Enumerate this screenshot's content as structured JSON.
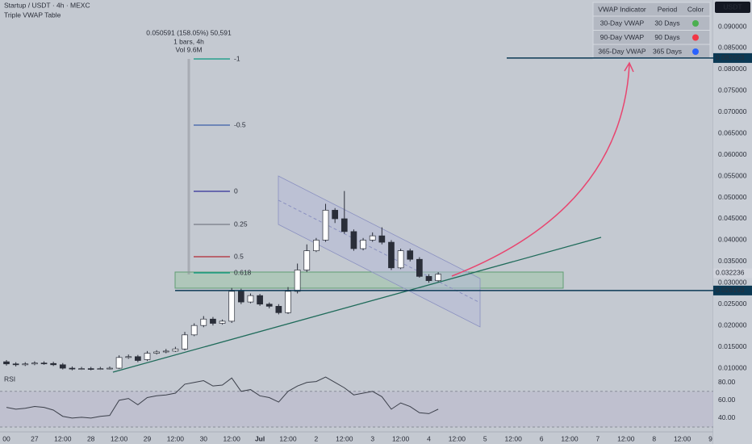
{
  "header": {
    "symbol": "Startup / USDT · 4h · MEXC",
    "indicator": "Triple VWAP Table"
  },
  "vwap_table": {
    "columns": [
      "VWAP Indicator",
      "Period",
      "Color"
    ],
    "rows": [
      {
        "name": "30-Day VWAP",
        "period": "30 Days",
        "color": "#4caf50"
      },
      {
        "name": "90-Day VWAP",
        "period": "90 Days",
        "color": "#f23645"
      },
      {
        "name": "365-Day VWAP",
        "period": "365 Days",
        "color": "#2962ff"
      }
    ]
  },
  "measure": {
    "lines": [
      "0.050591 (158.05%) 50,591",
      "1 bars, 4h",
      "Vol 9.6M"
    ]
  },
  "fib_levels": [
    {
      "label": "-1",
      "color": "#089981"
    },
    {
      "label": "-0.5",
      "color": "#3a5ea8"
    },
    {
      "label": "0",
      "color": "#30309a"
    },
    {
      "label": "0.25",
      "color": "#787b86"
    },
    {
      "label": "0.5",
      "color": "#b22833"
    },
    {
      "label": "0.618",
      "color": "#089981"
    }
  ],
  "chart_data": {
    "type": "candlestick",
    "currency": "USDT",
    "x_labels": [
      "00",
      "27",
      "12:00",
      "28",
      "12:00",
      "29",
      "12:00",
      "30",
      "12:00",
      "Jul",
      "12:00",
      "2",
      "12:00",
      "3",
      "12:00",
      "4",
      "12:00",
      "5",
      "12:00",
      "6",
      "12:00",
      "7",
      "12:00",
      "8",
      "12:00",
      "9"
    ],
    "open": [
      0.0115,
      0.011,
      0.0108,
      0.011,
      0.0112,
      0.0111,
      0.0108,
      0.01,
      0.0098,
      0.0099,
      0.0098,
      0.0099,
      0.01,
      0.0125,
      0.0127,
      0.012,
      0.0135,
      0.0138,
      0.014,
      0.0145,
      0.0178,
      0.02,
      0.0215,
      0.0205,
      0.021,
      0.028,
      0.0255,
      0.027,
      0.025,
      0.0245,
      0.023,
      0.028,
      0.033,
      0.0375,
      0.04,
      0.047,
      0.045,
      0.042,
      0.038,
      0.04,
      0.041,
      0.0395,
      0.0335,
      0.0375,
      0.0355,
      0.0315,
      0.0305
    ],
    "high": [
      0.0119,
      0.0114,
      0.0114,
      0.0116,
      0.0116,
      0.0115,
      0.0112,
      0.0104,
      0.0103,
      0.0103,
      0.0103,
      0.0104,
      0.013,
      0.0132,
      0.0131,
      0.014,
      0.0142,
      0.0145,
      0.015,
      0.0185,
      0.0205,
      0.0222,
      0.022,
      0.0214,
      0.0288,
      0.0286,
      0.0275,
      0.0274,
      0.0254,
      0.025,
      0.029,
      0.0345,
      0.039,
      0.0405,
      0.0485,
      0.0475,
      0.0515,
      0.0425,
      0.0405,
      0.0418,
      0.043,
      0.04,
      0.038,
      0.038,
      0.036,
      0.032,
      0.0325
    ],
    "low": [
      0.0106,
      0.0104,
      0.0105,
      0.0107,
      0.0108,
      0.0105,
      0.0097,
      0.0095,
      0.0096,
      0.0095,
      0.0096,
      0.0097,
      0.0098,
      0.0122,
      0.0114,
      0.0117,
      0.0132,
      0.0135,
      0.0138,
      0.0142,
      0.0175,
      0.0196,
      0.02,
      0.0202,
      0.0206,
      0.025,
      0.0252,
      0.0246,
      0.024,
      0.0226,
      0.0227,
      0.0275,
      0.0325,
      0.0372,
      0.0396,
      0.044,
      0.0415,
      0.0375,
      0.0376,
      0.0396,
      0.039,
      0.033,
      0.0332,
      0.035,
      0.0312,
      0.03,
      0.0302
    ],
    "close": [
      0.011,
      0.0108,
      0.011,
      0.0112,
      0.0111,
      0.0108,
      0.01,
      0.0098,
      0.0099,
      0.0098,
      0.0099,
      0.01,
      0.0125,
      0.0127,
      0.0118,
      0.0135,
      0.0138,
      0.014,
      0.0145,
      0.0178,
      0.02,
      0.0215,
      0.0205,
      0.021,
      0.028,
      0.0255,
      0.027,
      0.025,
      0.0245,
      0.023,
      0.028,
      0.033,
      0.0375,
      0.04,
      0.047,
      0.045,
      0.042,
      0.038,
      0.04,
      0.041,
      0.0395,
      0.0335,
      0.0375,
      0.0355,
      0.0315,
      0.0305,
      0.032
    ],
    "up_color": "#ffffff",
    "down_color": "#2a2e39",
    "ylim": [
      0.005,
      0.095
    ],
    "yticks": [
      {
        "value": 0.09,
        "label": "0.090000"
      },
      {
        "value": 0.085,
        "label": "0.085000"
      },
      {
        "value": 0.08,
        "label": "0.080000"
      },
      {
        "value": 0.075,
        "label": "0.075000"
      },
      {
        "value": 0.07,
        "label": "0.070000"
      },
      {
        "value": 0.065,
        "label": "0.065000"
      },
      {
        "value": 0.06,
        "label": "0.060000"
      },
      {
        "value": 0.055,
        "label": "0.055000"
      },
      {
        "value": 0.05,
        "label": "0.050000"
      },
      {
        "value": 0.045,
        "label": "0.045000"
      },
      {
        "value": 0.04,
        "label": "0.040000"
      },
      {
        "value": 0.035,
        "label": "0.035000"
      },
      {
        "value": 0.03,
        "label": "0.030000"
      },
      {
        "value": 0.025,
        "label": "0.025000"
      },
      {
        "value": 0.02,
        "label": "0.020000"
      },
      {
        "value": 0.015,
        "label": "0.015000"
      },
      {
        "value": 0.01,
        "label": "0.010000"
      }
    ],
    "price_tags": [
      {
        "value": 0.082653,
        "color": "#0b3954"
      },
      {
        "value": 0.032236,
        "color": "#d1d4dc"
      },
      {
        "value": 0.028193,
        "color": "#0b3954"
      }
    ],
    "rsi": {
      "name": "RSI",
      "color": "#3b3f4a",
      "values": [
        52,
        50,
        51,
        53,
        52,
        49,
        42,
        40,
        41,
        40,
        42,
        43,
        60,
        62,
        55,
        63,
        65,
        66,
        68,
        78,
        80,
        82,
        76,
        77,
        85,
        70,
        72,
        65,
        63,
        58,
        70,
        76,
        80,
        81,
        86,
        80,
        74,
        66,
        68,
        70,
        64,
        50,
        57,
        53,
        46,
        45,
        50
      ],
      "ylim": [
        25,
        87
      ],
      "yticks": [
        {
          "value": 80,
          "label": "80.00"
        },
        {
          "value": 60,
          "label": "60.00"
        },
        {
          "value": 40,
          "label": "40.00"
        }
      ]
    }
  }
}
